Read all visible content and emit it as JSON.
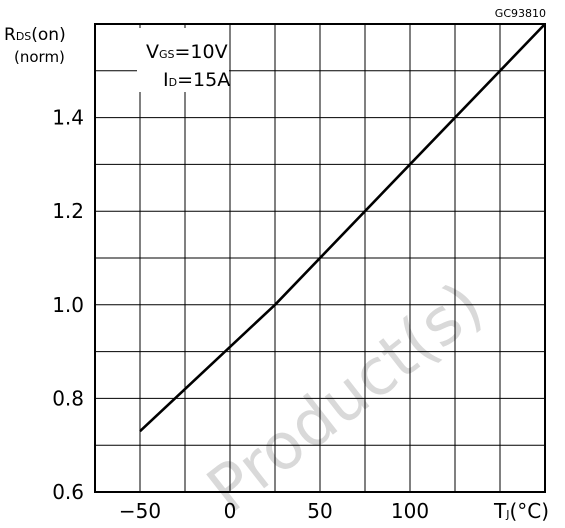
{
  "chart_data": {
    "type": "line",
    "figure_id": "GC93810",
    "ylabel_main": "R",
    "ylabel_sub": "DS",
    "ylabel_suffix": "(on)",
    "ylabel_line2": "(norm)",
    "xlabel_main": "T",
    "xlabel_sub": "J",
    "xlabel_suffix": "(°C)",
    "condition_1": {
      "main": "V",
      "sub": "GS",
      "rest": "=10V"
    },
    "condition_2": {
      "main": "I",
      "sub": "D",
      "rest": "=15A"
    },
    "x_ticks": [
      {
        "value": -50,
        "label": "−50"
      },
      {
        "value": 0,
        "label": "0"
      },
      {
        "value": 50,
        "label": "50"
      },
      {
        "value": 100,
        "label": "100"
      }
    ],
    "y_ticks": [
      {
        "value": 0.6,
        "label": "0.6"
      },
      {
        "value": 0.8,
        "label": "0.8"
      },
      {
        "value": 1.0,
        "label": "1.0"
      },
      {
        "value": 1.2,
        "label": "1.2"
      },
      {
        "value": 1.4,
        "label": "1.4"
      }
    ],
    "xlim": [
      -75,
      175
    ],
    "ylim": [
      0.6,
      1.6
    ],
    "grid": true,
    "series": [
      {
        "x": [
          -50,
          25,
          175
        ],
        "y": [
          0.73,
          1.0,
          1.6
        ]
      }
    ],
    "watermark": "Product(s)"
  }
}
